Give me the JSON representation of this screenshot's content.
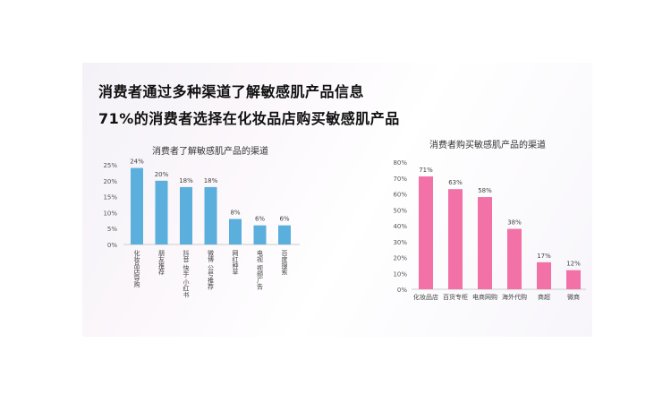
{
  "headline": {
    "line1": "消费者通过多种渠道了解敏感肌产品信息",
    "line2": "71%的消费者选择在化妆品店购买敏感肌产品"
  },
  "chart_data": [
    {
      "type": "bar",
      "title": "消费者了解敏感肌产品的渠道",
      "categories": [
        "化妆品店导购",
        "朋友推荐",
        "抖音 快手 小红书",
        "微博 公号推荐",
        "网红种草",
        "电视 视频广告",
        "百度搜索"
      ],
      "values": [
        24,
        20,
        18,
        18,
        8,
        6,
        6
      ],
      "data_labels": [
        "24%",
        "20%",
        "18%",
        "18%",
        "8%",
        "6%",
        "6%"
      ],
      "ylim": [
        0,
        25
      ],
      "yticks": [
        "0%",
        "5%",
        "10%",
        "15%",
        "20%",
        "25%"
      ],
      "color": "#5aafdc",
      "grid": false
    },
    {
      "type": "bar",
      "title": "消费者购买敏感肌产品的渠道",
      "categories": [
        "化妆品店",
        "百货专柜",
        "电商网购",
        "海外代购",
        "商超",
        "微商"
      ],
      "values": [
        71,
        63,
        58,
        38,
        17,
        12
      ],
      "data_labels": [
        "71%",
        "63%",
        "58%",
        "38%",
        "17%",
        "12%"
      ],
      "ylim": [
        0,
        80
      ],
      "yticks": [
        "0%",
        "10%",
        "20%",
        "30%",
        "40%",
        "50%",
        "60%",
        "70%",
        "80%"
      ],
      "color": "#f272a8",
      "grid": false
    }
  ]
}
